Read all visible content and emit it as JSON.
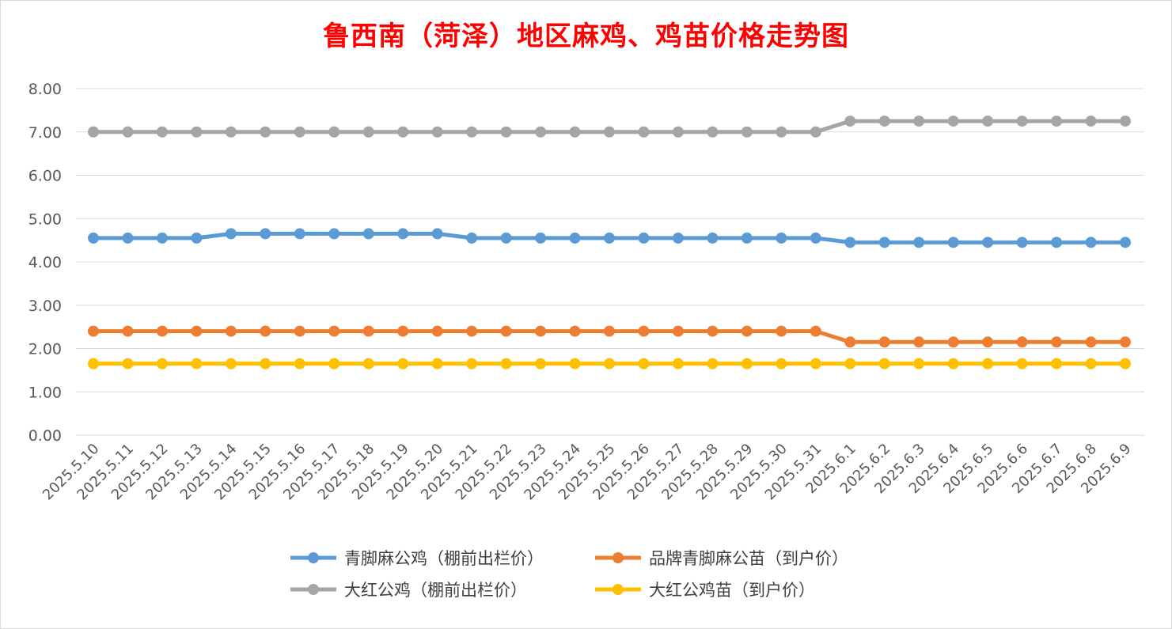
{
  "chart_data": {
    "type": "line",
    "title": "鲁西南（菏泽）地区麻鸡、鸡苗价格走势图",
    "xlabel": "",
    "ylabel": "",
    "ylim": [
      0,
      8
    ],
    "yticks": [
      "0.00",
      "1.00",
      "2.00",
      "3.00",
      "4.00",
      "5.00",
      "6.00",
      "7.00",
      "8.00"
    ],
    "grid": true,
    "legend_position": "bottom",
    "categories": [
      "2025.5.10",
      "2025.5.11",
      "2025.5.12",
      "2025.5.13",
      "2025.5.14",
      "2025.5.15",
      "2025.5.16",
      "2025.5.17",
      "2025.5.18",
      "2025.5.19",
      "2025.5.20",
      "2025.5.21",
      "2025.5.22",
      "2025.5.23",
      "2025.5.24",
      "2025.5.25",
      "2025.5.26",
      "2025.5.27",
      "2025.5.28",
      "2025.5.29",
      "2025.5.30",
      "2025.5.31",
      "2025.6.1",
      "2025.6.2",
      "2025.6.3",
      "2025.6.4",
      "2025.6.5",
      "2025.6.6",
      "2025.6.7",
      "2025.6.8",
      "2025.6.9"
    ],
    "series": [
      {
        "name": "青脚麻公鸡（棚前出栏价）",
        "color": "#5b9bd5",
        "values": [
          4.55,
          4.55,
          4.55,
          4.55,
          4.65,
          4.65,
          4.65,
          4.65,
          4.65,
          4.65,
          4.65,
          4.55,
          4.55,
          4.55,
          4.55,
          4.55,
          4.55,
          4.55,
          4.55,
          4.55,
          4.55,
          4.55,
          4.45,
          4.45,
          4.45,
          4.45,
          4.45,
          4.45,
          4.45,
          4.45,
          4.45
        ]
      },
      {
        "name": "品牌青脚麻公苗（到户价）",
        "color": "#ed7d31",
        "values": [
          2.4,
          2.4,
          2.4,
          2.4,
          2.4,
          2.4,
          2.4,
          2.4,
          2.4,
          2.4,
          2.4,
          2.4,
          2.4,
          2.4,
          2.4,
          2.4,
          2.4,
          2.4,
          2.4,
          2.4,
          2.4,
          2.4,
          2.15,
          2.15,
          2.15,
          2.15,
          2.15,
          2.15,
          2.15,
          2.15,
          2.15
        ]
      },
      {
        "name": "大红公鸡（棚前出栏价）",
        "color": "#a5a5a5",
        "values": [
          7.0,
          7.0,
          7.0,
          7.0,
          7.0,
          7.0,
          7.0,
          7.0,
          7.0,
          7.0,
          7.0,
          7.0,
          7.0,
          7.0,
          7.0,
          7.0,
          7.0,
          7.0,
          7.0,
          7.0,
          7.0,
          7.0,
          7.25,
          7.25,
          7.25,
          7.25,
          7.25,
          7.25,
          7.25,
          7.25,
          7.25
        ]
      },
      {
        "name": "大红公鸡苗（到户价）",
        "color": "#ffc000",
        "values": [
          1.65,
          1.65,
          1.65,
          1.65,
          1.65,
          1.65,
          1.65,
          1.65,
          1.65,
          1.65,
          1.65,
          1.65,
          1.65,
          1.65,
          1.65,
          1.65,
          1.65,
          1.65,
          1.65,
          1.65,
          1.65,
          1.65,
          1.65,
          1.65,
          1.65,
          1.65,
          1.65,
          1.65,
          1.65,
          1.65,
          1.65
        ]
      }
    ]
  }
}
